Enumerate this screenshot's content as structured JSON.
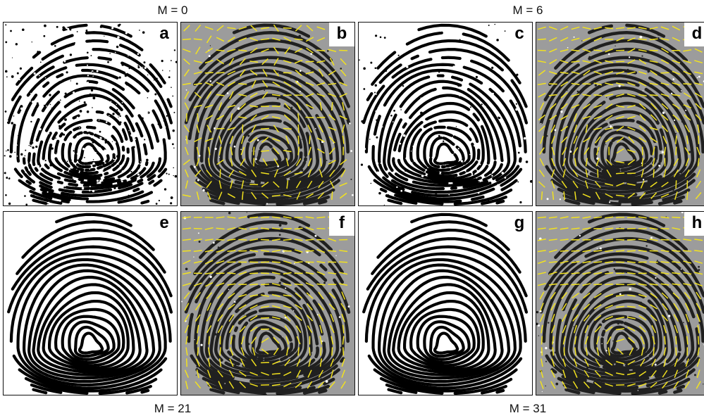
{
  "figure": {
    "captions": {
      "m0": "M = 0",
      "m6": "M = 6",
      "m21": "M = 21",
      "m31": "M = 31"
    },
    "panels": [
      {
        "label": "a",
        "kind": "binarized",
        "condition": "M = 0"
      },
      {
        "label": "b",
        "kind": "orientation-field",
        "condition": "M = 0"
      },
      {
        "label": "c",
        "kind": "binarized",
        "condition": "M = 6"
      },
      {
        "label": "d",
        "kind": "orientation-field",
        "condition": "M = 6"
      },
      {
        "label": "e",
        "kind": "binarized",
        "condition": "M = 21"
      },
      {
        "label": "f",
        "kind": "orientation-field",
        "condition": "M = 21"
      },
      {
        "label": "g",
        "kind": "binarized",
        "condition": "M = 31"
      },
      {
        "label": "h",
        "kind": "orientation-field",
        "condition": "M = 31"
      }
    ],
    "colors": {
      "ridge": "#000000",
      "background_gray": "#9c9c9c",
      "orientation_mark": "#f2e21e"
    }
  }
}
